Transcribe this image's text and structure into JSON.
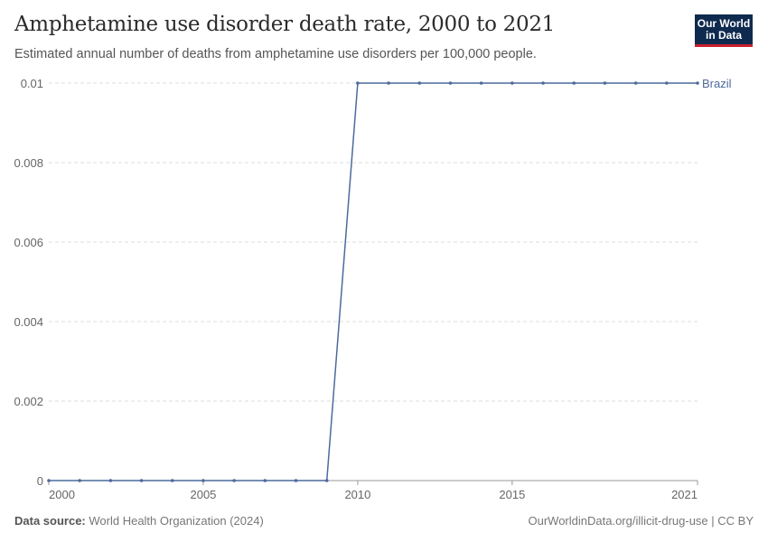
{
  "header": {
    "title": "Amphetamine use disorder death rate, 2000 to 2021",
    "subtitle": "Estimated annual number of deaths from amphetamine use disorders per 100,000 people.",
    "logo_line1": "Our World",
    "logo_line2": "in Data"
  },
  "footer": {
    "source_label": "Data source:",
    "source": "World Health Organization (2024)",
    "url": "OurWorldinData.org/illicit-drug-use | CC BY"
  },
  "chart_data": {
    "type": "line",
    "title": "Amphetamine use disorder death rate, 2000 to 2021",
    "xlabel": "",
    "ylabel": "",
    "xlim": [
      2000,
      2021
    ],
    "ylim": [
      0,
      0.01
    ],
    "grid": true,
    "x_ticks": [
      "2000",
      "2005",
      "2010",
      "2015",
      "2021"
    ],
    "y_ticks": [
      "0",
      "0.002",
      "0.004",
      "0.006",
      "0.008",
      "0.01"
    ],
    "series": [
      {
        "name": "Brazil",
        "color": "#4c6a9c",
        "x": [
          2000,
          2001,
          2002,
          2003,
          2004,
          2005,
          2006,
          2007,
          2008,
          2009,
          2010,
          2011,
          2012,
          2013,
          2014,
          2015,
          2016,
          2017,
          2018,
          2019,
          2020,
          2021
        ],
        "y": [
          0,
          0,
          0,
          0,
          0,
          0,
          0,
          0,
          0,
          0,
          0.01,
          0.01,
          0.01,
          0.01,
          0.01,
          0.01,
          0.01,
          0.01,
          0.01,
          0.01,
          0.01,
          0.01
        ]
      }
    ]
  }
}
